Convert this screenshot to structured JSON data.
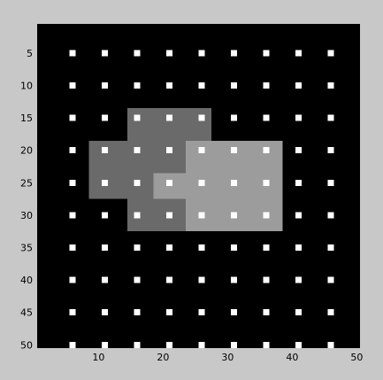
{
  "chart_data": {
    "type": "heatmap",
    "title": "",
    "xlabel": "",
    "ylabel": "",
    "xlim": [
      0.5,
      50.5
    ],
    "ylim": [
      0.5,
      50.5
    ],
    "y_reversed": true,
    "grid": false,
    "x_ticks": [
      10,
      20,
      30,
      40,
      50
    ],
    "y_ticks": [
      5,
      10,
      15,
      20,
      25,
      30,
      35,
      40,
      45,
      50
    ],
    "x_tick_labels": [
      "10",
      "20",
      "30",
      "40",
      "50"
    ],
    "y_tick_labels": [
      "5",
      "10",
      "15",
      "20",
      "25",
      "30",
      "35",
      "40",
      "45",
      "50"
    ],
    "background_value": 0,
    "regions": [
      {
        "name": "dark-gray-region",
        "x_range": [
          15,
          27
        ],
        "y_range": [
          14,
          18
        ],
        "color": "#6a6a6a"
      },
      {
        "name": "dark-gray-region",
        "x_range": [
          9,
          23
        ],
        "y_range": [
          19,
          23
        ],
        "color": "#6a6a6a"
      },
      {
        "name": "dark-gray-region",
        "x_range": [
          9,
          18
        ],
        "y_range": [
          24,
          27
        ],
        "color": "#6a6a6a"
      },
      {
        "name": "dark-gray-region",
        "x_range": [
          15,
          23
        ],
        "y_range": [
          28,
          32
        ],
        "color": "#6a6a6a"
      },
      {
        "name": "light-gray-region",
        "x_range": [
          24,
          38
        ],
        "y_range": [
          19,
          32
        ],
        "color": "#9c9c9c"
      },
      {
        "name": "light-gray-region",
        "x_range": [
          19,
          23
        ],
        "y_range": [
          24,
          27
        ],
        "color": "#9c9c9c"
      }
    ],
    "dot_grid": {
      "x": [
        6,
        11,
        16,
        21,
        26,
        31,
        36,
        41,
        46
      ],
      "y": [
        5,
        10,
        15,
        20,
        25,
        30,
        35,
        40,
        45,
        50
      ],
      "color": "#ffffff"
    }
  },
  "colors": {
    "figure_background": "#c8c8c8",
    "plot_background": "#000000",
    "tick_color": "#000000"
  }
}
